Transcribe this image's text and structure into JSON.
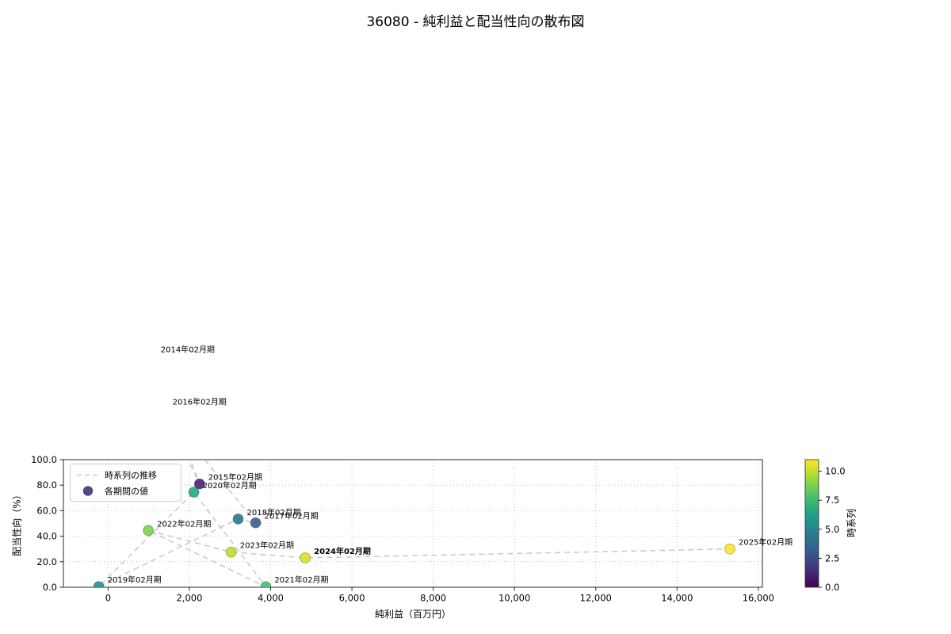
{
  "title": "36080 - 純利益と配当性向の散布図",
  "chart_data": {
    "type": "scatter",
    "title": "36080 - 純利益と配当性向の散布図",
    "xlabel": "純利益（百万円）",
    "ylabel": "配当性向（%）",
    "colorbar_label": "時系列",
    "xlim": [
      -1100,
      16100
    ],
    "ylim": [
      0,
      100
    ],
    "grid": true,
    "xticks": [
      0,
      2000,
      4000,
      6000,
      8000,
      10000,
      12000,
      14000,
      16000
    ],
    "xtick_labels": [
      "0",
      "2,000",
      "4,000",
      "6,000",
      "8,000",
      "10,000",
      "12,000",
      "14,000",
      "16,000"
    ],
    "yticks": [
      0,
      20,
      40,
      60,
      80,
      100
    ],
    "ytick_labels": [
      "0.0",
      "20.0",
      "40.0",
      "60.0",
      "80.0",
      "100.0"
    ],
    "colorbar_range": [
      0,
      11
    ],
    "colorbar_ticks": [
      0,
      2.5,
      5,
      7.5,
      10
    ],
    "colorbar_tick_labels": [
      "0.0",
      "2.5",
      "5.0",
      "7.5",
      "10.0"
    ],
    "colorbar_gradient": [
      "#440154",
      "#46327e",
      "#365c8d",
      "#277f8e",
      "#1fa187",
      "#4ac16d",
      "#a0da39",
      "#fde725"
    ],
    "legend": {
      "line_label": "時系列の推移",
      "point_label": "各期間の値",
      "marker_color": "#46327e"
    },
    "style": {
      "line_color": "#c8c8c8",
      "grid_color": "#b5b5b5",
      "frame_color": "#2a2a2a"
    },
    "points": [
      {
        "label": "2014年02月期",
        "x": 1080,
        "y": 181,
        "t": 0,
        "color": "#440154"
      },
      {
        "label": "2015年02月期",
        "x": 2250,
        "y": 81,
        "t": 1,
        "color": "#482475"
      },
      {
        "label": "2016年02月期",
        "x": 1370,
        "y": 140,
        "t": 2,
        "color": "#414487"
      },
      {
        "label": "2017年02月期",
        "x": 3630,
        "y": 50.5,
        "t": 3,
        "color": "#355f8d"
      },
      {
        "label": "2018年02月期",
        "x": 3200,
        "y": 53.5,
        "t": 4,
        "color": "#2a788e"
      },
      {
        "label": "2019年02月期",
        "x": -230,
        "y": 0.5,
        "t": 5,
        "color": "#21918c"
      },
      {
        "label": "2020年02月期",
        "x": 2110,
        "y": 74.5,
        "t": 6,
        "color": "#22a884"
      },
      {
        "label": "2021年02月期",
        "x": 3880,
        "y": 0.5,
        "t": 7,
        "color": "#44bf70"
      },
      {
        "label": "2022年02月期",
        "x": 990,
        "y": 44.5,
        "t": 8,
        "color": "#7ad151"
      },
      {
        "label": "2023年02月期",
        "x": 3030,
        "y": 27.5,
        "t": 9,
        "color": "#bddf26"
      },
      {
        "label": "2024年02月期",
        "x": 4850,
        "y": 23,
        "t": 10,
        "color": "#d8e219",
        "bold": true
      },
      {
        "label": "2025年02月期",
        "x": 15300,
        "y": 30,
        "t": 11,
        "color": "#fde725"
      }
    ]
  }
}
